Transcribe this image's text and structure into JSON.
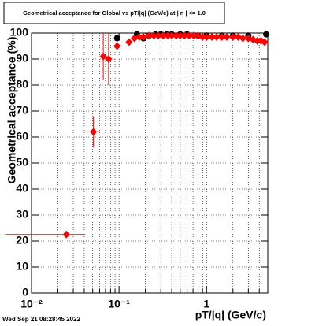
{
  "chart_data": {
    "type": "scatter",
    "title": "Geometrical acceptance for Global vs pT/|q| (GeV/c) at | η | <= 1.0",
    "x_label": "pT/|q| (GeV/c)",
    "y_label": "Geometrical acceptance (%)",
    "footer": "Wed Sep 21 08:28:45 2022",
    "log_x": true,
    "grid": true,
    "xlim": [
      0.01,
      5
    ],
    "ylim": [
      0,
      100
    ],
    "xticks": [
      {
        "value": 0.01,
        "label": "10⁻²"
      },
      {
        "value": 0.1,
        "label": "10⁻¹"
      },
      1
    ],
    "xminorticks": [
      0.02,
      0.03,
      0.04,
      0.05,
      0.06,
      0.07,
      0.08,
      0.09,
      0.2,
      0.3,
      0.4,
      0.5,
      0.6,
      0.7,
      0.8,
      0.9,
      2,
      3,
      4
    ],
    "yticks": [
      0,
      10,
      20,
      30,
      40,
      50,
      60,
      70,
      80,
      90,
      100
    ],
    "series": [
      {
        "color": "#000000",
        "marker": "circle",
        "x": [
          0.095,
          0.16,
          0.19,
          0.22,
          0.26,
          0.3,
          0.35,
          0.4,
          0.5,
          0.6,
          0.8,
          1.0,
          1.5,
          2,
          3,
          4.8
        ],
        "values": [
          98,
          99.5,
          98,
          99,
          99.5,
          99.5,
          99.5,
          99.5,
          99.5,
          99.5,
          99,
          99,
          99,
          99,
          99,
          99.5
        ]
      },
      {
        "color": "#ff0000",
        "marker": "diamond",
        "x": [
          0.025,
          0.051,
          0.066,
          0.076,
          0.095,
          0.13,
          0.15,
          0.17,
          0.19,
          0.22,
          0.25,
          0.28,
          0.32,
          0.36,
          0.4,
          0.45,
          0.5,
          0.56,
          0.63,
          0.71,
          0.8,
          0.9,
          1.0,
          1.15,
          1.3,
          1.5,
          1.7,
          2.0,
          2.3,
          2.6,
          3.0,
          3.4,
          3.8,
          4.2,
          4.6
        ],
        "values": [
          22.5,
          62,
          91,
          90,
          95,
          96.5,
          98,
          98.5,
          98.5,
          99,
          99,
          99,
          99,
          99,
          99,
          99,
          99,
          99,
          99,
          99,
          99,
          98.5,
          98.5,
          98.5,
          98.5,
          98.5,
          98.5,
          98.5,
          98.5,
          98,
          98,
          97.5,
          97,
          97,
          96.5
        ],
        "yerr": [
          0.5,
          6,
          9,
          10,
          1.5,
          1,
          1,
          0.5,
          0.5,
          0.5,
          0.5,
          0.5,
          0.5,
          0.5,
          0.5,
          0.5,
          0.5,
          0.5,
          0.5,
          0.5,
          0.5,
          0.5,
          0.5,
          0.5,
          0.5,
          0.5,
          0.5,
          0.5,
          0.5,
          0.5,
          0.5,
          0.5,
          0.5,
          0.5,
          0.5
        ],
        "x_low": [
          0.005,
          0.04
        ],
        "x_high": [
          0.041,
          0.061
        ]
      }
    ]
  }
}
